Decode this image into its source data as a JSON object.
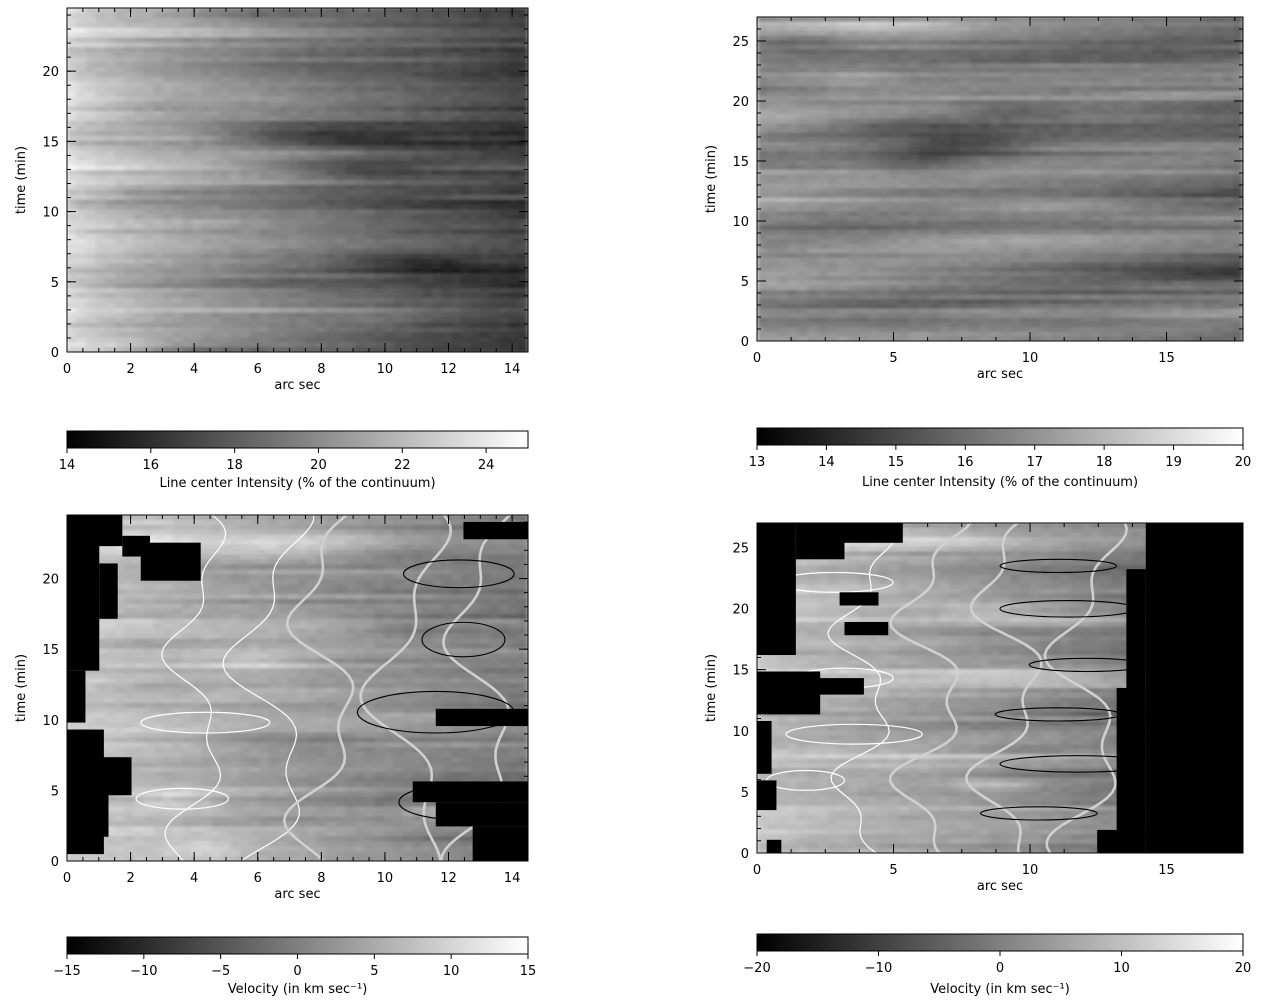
{
  "chart_data": [
    {
      "type": "heatmap",
      "panel": "top-left",
      "xlabel": "arc sec",
      "ylabel": "time (min)",
      "xlim": [
        0,
        14.5
      ],
      "ylim": [
        0,
        24.5
      ],
      "xticks": [
        "0",
        "2",
        "4",
        "6",
        "8",
        "10",
        "12",
        "14"
      ],
      "yticks": [
        "0",
        "5",
        "10",
        "15",
        "20"
      ],
      "colorbar": {
        "label": "Line center Intensity (% of the continuum)",
        "range": [
          14,
          25
        ],
        "ticks": [
          "14",
          "16",
          "18",
          "20",
          "22",
          "24"
        ]
      }
    },
    {
      "type": "heatmap",
      "panel": "top-right",
      "xlabel": "arc sec",
      "ylabel": "time (min)",
      "xlim": [
        0,
        17.8
      ],
      "ylim": [
        0,
        27
      ],
      "xticks": [
        "0",
        "5",
        "10",
        "15"
      ],
      "yticks": [
        "0",
        "5",
        "10",
        "15",
        "20",
        "25"
      ],
      "colorbar": {
        "label": "Line center Intensity (% of the continuum)",
        "range": [
          13,
          20
        ],
        "ticks": [
          "13",
          "14",
          "15",
          "16",
          "17",
          "18",
          "19",
          "20"
        ]
      }
    },
    {
      "type": "heatmap",
      "panel": "bottom-left",
      "xlabel": "arc sec",
      "ylabel": "time (min)",
      "xlim": [
        0,
        14.5
      ],
      "ylim": [
        0,
        24.5
      ],
      "xticks": [
        "0",
        "2",
        "4",
        "6",
        "8",
        "10",
        "12",
        "14"
      ],
      "yticks": [
        "0",
        "5",
        "10",
        "15",
        "20"
      ],
      "contours": true,
      "colorbar": {
        "label": "Velocity (in km sec⁻¹)",
        "range": [
          -15,
          15
        ],
        "ticks": [
          "−15",
          "−10",
          "−5",
          "0",
          "5",
          "10",
          "15"
        ]
      }
    },
    {
      "type": "heatmap",
      "panel": "bottom-right",
      "xlabel": "arc sec",
      "ylabel": "time (min)",
      "xlim": [
        0,
        17.8
      ],
      "ylim": [
        0,
        27
      ],
      "xticks": [
        "0",
        "5",
        "10",
        "15"
      ],
      "yticks": [
        "0",
        "5",
        "10",
        "15",
        "20",
        "25"
      ],
      "contours": true,
      "colorbar": {
        "label": "Velocity (in km sec⁻¹)",
        "range": [
          -20,
          20
        ],
        "ticks": [
          "−20",
          "−10",
          "0",
          "10",
          "20"
        ]
      }
    }
  ]
}
